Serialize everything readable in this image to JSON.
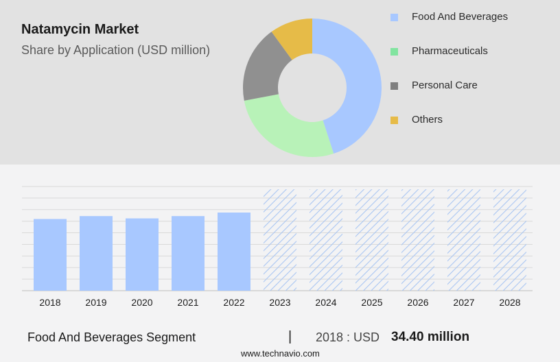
{
  "header": {
    "title": "Natamycin Market",
    "subtitle": "Share by Application (USD million)"
  },
  "chart_data": [
    {
      "type": "pie",
      "variant": "donut",
      "categories": [
        "Food And Beverages",
        "Pharmaceuticals",
        "Personal Care",
        "Others"
      ],
      "values": [
        45,
        27,
        18,
        10
      ],
      "colors": [
        "#a8c8ff",
        "#b8f2b8",
        "#909090",
        "#e6bb48"
      ],
      "legend": {
        "placement": "right",
        "swatch_colors": [
          "#a8c8ff",
          "#82e4a0",
          "#7f7f7f",
          "#e6bb48"
        ]
      }
    },
    {
      "type": "bar",
      "categories": [
        "2018",
        "2019",
        "2020",
        "2021",
        "2022",
        "2023",
        "2024",
        "2025",
        "2026",
        "2027",
        "2028"
      ],
      "values": [
        34.4,
        35.8,
        34.7,
        35.8,
        37.5,
        null,
        null,
        null,
        null,
        null,
        null
      ],
      "forecast_years": [
        "2023",
        "2024",
        "2025",
        "2026",
        "2027",
        "2028"
      ],
      "ylim": [
        0,
        50
      ],
      "grid": true,
      "bar_color": "#a8c8ff",
      "forecast_color": "#aac6f2"
    }
  ],
  "footer": {
    "segment": "Food And Beverages Segment",
    "divider": "|",
    "year_label": "2018 : USD",
    "value": "34.40 million",
    "site": "www.technavio.com"
  }
}
